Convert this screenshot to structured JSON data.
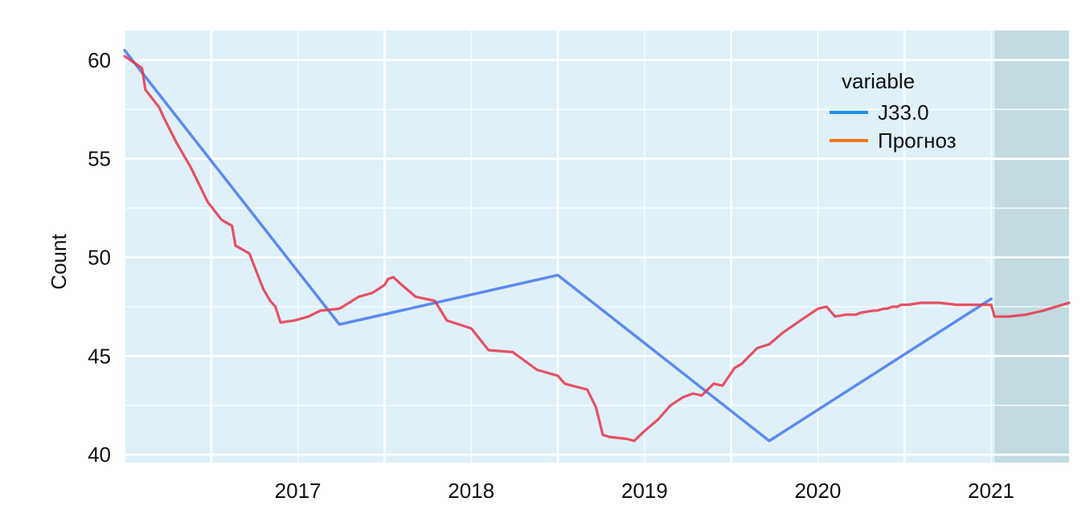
{
  "chart_data": {
    "type": "line",
    "title": "",
    "xlabel": "",
    "ylabel": "Count",
    "x_ticks": [
      "2017",
      "2018",
      "2019",
      "2020",
      "2021"
    ],
    "y_ticks": [
      40,
      45,
      50,
      55,
      60
    ],
    "xlim": [
      2016.5,
      2021.95
    ],
    "ylim": [
      39.6,
      61.5
    ],
    "grid": true,
    "legend": {
      "title": "variable",
      "placement": "top-right"
    },
    "forecast_region": [
      2021.52,
      2021.95
    ],
    "colors": {
      "panel_bg": "#dff0f8",
      "forecast_bg": "#c3dbe0",
      "grid": "#ffffff",
      "J33.0": "#4e7ef0",
      "Прогноз": "#e8344a",
      "legend_J33.0": "#1e8ff0",
      "legend_Прогноз": "#f5751d"
    },
    "series": [
      {
        "name": "J33.0",
        "x": [
          2016.5,
          2017.74,
          2019.0,
          2020.22,
          2021.5
        ],
        "y": [
          60.5,
          46.6,
          49.1,
          40.7,
          47.9
        ]
      },
      {
        "name": "Прогноз",
        "x": [
          2016.5,
          2016.6,
          2016.62,
          2016.7,
          2016.72,
          2016.8,
          2016.88,
          2016.98,
          2017.06,
          2017.12,
          2017.14,
          2017.22,
          2017.3,
          2017.34,
          2017.37,
          2017.4,
          2017.48,
          2017.56,
          2017.63,
          2017.74,
          2017.85,
          2017.93,
          2018.0,
          2018.02,
          2018.05,
          2018.1,
          2018.18,
          2018.29,
          2018.36,
          2018.5,
          2018.6,
          2018.74,
          2018.88,
          2019.0,
          2019.04,
          2019.08,
          2019.17,
          2019.22,
          2019.26,
          2019.3,
          2019.4,
          2019.44,
          2019.5,
          2019.58,
          2019.65,
          2019.72,
          2019.78,
          2019.83,
          2019.9,
          2019.95,
          2020.02,
          2020.06,
          2020.15,
          2020.22,
          2020.3,
          2020.4,
          2020.5,
          2020.55,
          2020.6,
          2020.66,
          2020.72,
          2020.75,
          2020.82,
          2020.84,
          2020.88,
          2020.9,
          2020.93,
          2020.96,
          2020.98,
          2021.02,
          2021.1,
          2021.2,
          2021.3,
          2021.38,
          2021.46,
          2021.5,
          2021.52,
          2021.6,
          2021.7,
          2021.8,
          2021.95
        ],
        "y": [
          60.2,
          59.6,
          58.5,
          57.6,
          57.2,
          55.8,
          54.6,
          52.8,
          51.9,
          51.6,
          50.6,
          50.2,
          48.4,
          47.8,
          47.5,
          46.7,
          46.8,
          47.0,
          47.3,
          47.4,
          48.0,
          48.2,
          48.6,
          48.9,
          49.0,
          48.6,
          48.0,
          47.8,
          46.8,
          46.4,
          45.3,
          45.2,
          44.3,
          44.0,
          43.6,
          43.5,
          43.3,
          42.4,
          41.0,
          40.9,
          40.8,
          40.7,
          41.2,
          41.8,
          42.5,
          42.9,
          43.1,
          43.0,
          43.6,
          43.5,
          44.4,
          44.6,
          45.4,
          45.6,
          46.2,
          46.8,
          47.4,
          47.5,
          47.0,
          47.1,
          47.1,
          47.2,
          47.3,
          47.3,
          47.4,
          47.4,
          47.5,
          47.5,
          47.6,
          47.6,
          47.7,
          47.7,
          47.6,
          47.6,
          47.6,
          47.6,
          47.0,
          47.0,
          47.1,
          47.3,
          47.7
        ]
      }
    ]
  }
}
